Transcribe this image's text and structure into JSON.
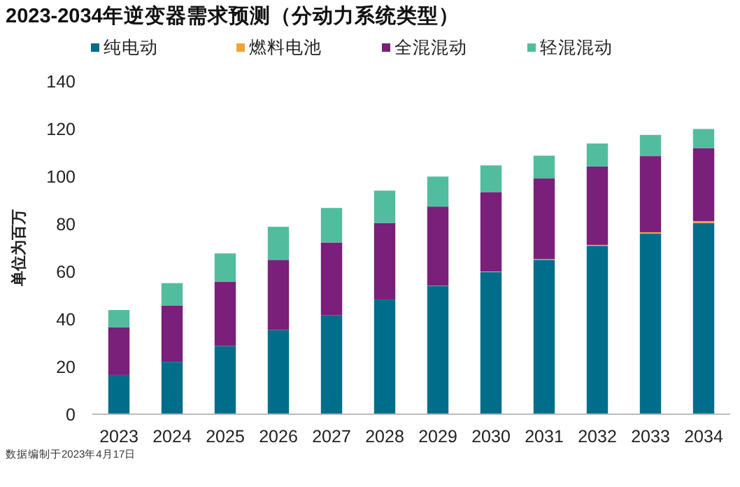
{
  "chart_data": {
    "type": "bar",
    "stacked": true,
    "title": "2023-2034年逆变器需求预测（分动力系统类型）",
    "ylabel": "单位为百万",
    "categories": [
      "2023",
      "2024",
      "2025",
      "2026",
      "2027",
      "2028",
      "2029",
      "2030",
      "2031",
      "2032",
      "2033",
      "2034"
    ],
    "series": [
      {
        "name": "纯电动",
        "color": "#006e8a",
        "values": [
          16.5,
          22.0,
          28.7,
          35.4,
          41.7,
          48.2,
          53.9,
          59.8,
          64.9,
          70.8,
          75.9,
          80.4
        ]
      },
      {
        "name": "燃料电池",
        "color": "#f0a33c",
        "values": [
          0,
          0,
          0,
          0,
          0,
          0,
          0.1,
          0.2,
          0.3,
          0.4,
          0.6,
          0.8
        ]
      },
      {
        "name": "全混混动",
        "color": "#7a1f7a",
        "values": [
          20.1,
          23.6,
          26.9,
          29.5,
          30.5,
          32.2,
          33.3,
          33.4,
          33.9,
          33.0,
          32.0,
          30.7
        ]
      },
      {
        "name": "轻混混动",
        "color": "#52bd9e",
        "values": [
          7.2,
          9.5,
          12.0,
          13.9,
          14.5,
          13.6,
          12.6,
          11.2,
          9.6,
          9.6,
          8.9,
          8.0
        ]
      }
    ],
    "ylim": [
      0,
      140
    ],
    "yticks": [
      0,
      20,
      40,
      60,
      80,
      100,
      120,
      140
    ],
    "grid": false,
    "legend": "top",
    "annotations": [
      "数据编制于2023年4月17日"
    ]
  }
}
